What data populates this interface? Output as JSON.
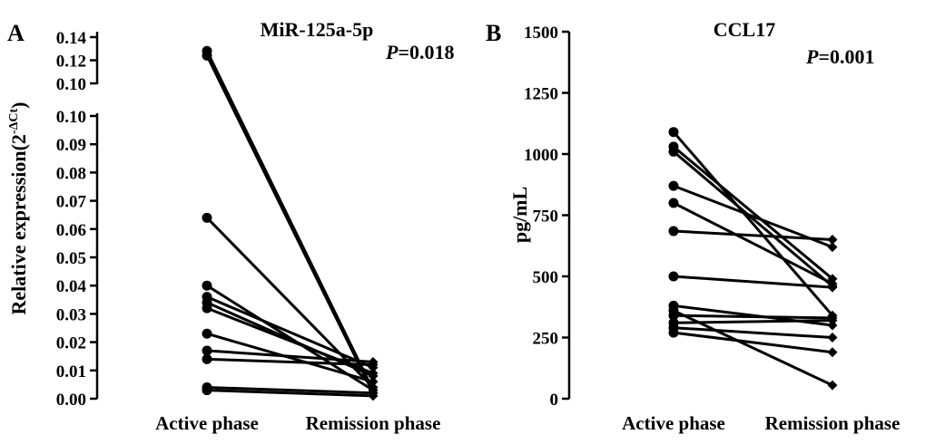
{
  "chart_data": [
    {
      "type": "line",
      "panel_label": "A",
      "title": "MiR-125a-5p",
      "p_value": {
        "prefix": "P",
        "text": "=0.018"
      },
      "ylabel": {
        "main": "Relative expression(2",
        "sup": "-ΔCt",
        "close": ")"
      },
      "categories": [
        "Active phase",
        "Remission phase"
      ],
      "axis_break": {
        "lower_range": [
          0,
          0.1
        ],
        "upper_range": [
          0.1,
          0.14
        ]
      },
      "y_ticks_lower": [
        "0.00",
        "0.01",
        "0.02",
        "0.03",
        "0.04",
        "0.05",
        "0.06",
        "0.07",
        "0.08",
        "0.09",
        "0.10"
      ],
      "y_ticks_upper": [
        "0.10",
        "0.12",
        "0.14"
      ],
      "markers": {
        "active": "circle",
        "remission": "diamond"
      },
      "pairs": [
        [
          0.128,
          0.003
        ],
        [
          0.124,
          0.002
        ],
        [
          0.064,
          0.004
        ],
        [
          0.04,
          0.003
        ],
        [
          0.036,
          0.011
        ],
        [
          0.034,
          0.008
        ],
        [
          0.032,
          0.009
        ],
        [
          0.023,
          0.006
        ],
        [
          0.017,
          0.013
        ],
        [
          0.014,
          0.012
        ],
        [
          0.004,
          0.002
        ],
        [
          0.003,
          0.001
        ]
      ]
    },
    {
      "type": "line",
      "panel_label": "B",
      "title": "CCL17",
      "p_value": {
        "prefix": "P",
        "text": "=0.001"
      },
      "ylabel": {
        "main": "pg/mL"
      },
      "categories": [
        "Active phase",
        "Remission phase"
      ],
      "ylim": [
        0,
        1500
      ],
      "y_ticks": [
        "0",
        "250",
        "500",
        "750",
        "1000",
        "1250",
        "1500"
      ],
      "markers": {
        "active": "circle",
        "remission": "diamond"
      },
      "pairs": [
        [
          1090,
          340
        ],
        [
          1030,
          490
        ],
        [
          1010,
          460
        ],
        [
          870,
          620
        ],
        [
          800,
          470
        ],
        [
          685,
          650
        ],
        [
          500,
          455
        ],
        [
          380,
          300
        ],
        [
          360,
          55
        ],
        [
          340,
          330
        ],
        [
          310,
          320
        ],
        [
          290,
          250
        ],
        [
          270,
          190
        ]
      ]
    }
  ]
}
